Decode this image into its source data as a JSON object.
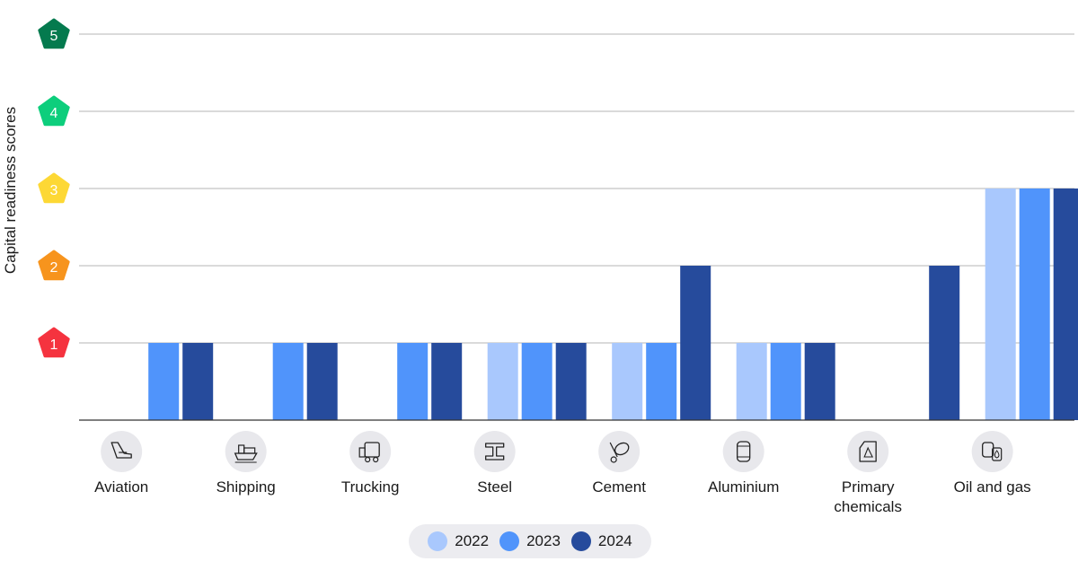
{
  "chart_data": {
    "type": "bar",
    "ylabel": "Capital readiness scores",
    "ylim": [
      0,
      5
    ],
    "yticks": [
      1,
      2,
      3,
      4,
      5
    ],
    "tick_badge_colors": [
      "#f5333f",
      "#f7941d",
      "#fdd835",
      "#0dce7c",
      "#047a4e"
    ],
    "categories": [
      "Aviation",
      "Shipping",
      "Trucking",
      "Steel",
      "Cement",
      "Aluminium",
      "Primary chemicals",
      "Oil and gas"
    ],
    "category_icons": [
      "plane-tail-icon",
      "ship-icon",
      "truck-icon",
      "steel-beam-icon",
      "cement-mixer-icon",
      "aluminium-can-icon",
      "chemical-container-icon",
      "oil-barrel-icon"
    ],
    "series": [
      {
        "name": "2022",
        "color": "#a9c8fd",
        "values": [
          null,
          null,
          null,
          1,
          1,
          1,
          null,
          3
        ]
      },
      {
        "name": "2023",
        "color": "#5094fb",
        "values": [
          1,
          1,
          1,
          1,
          1,
          1,
          null,
          3
        ]
      },
      {
        "name": "2024",
        "color": "#264b9c",
        "values": [
          1,
          1,
          1,
          1,
          2,
          1,
          2,
          3
        ]
      }
    ],
    "legend_position": "bottom-center",
    "grid": true
  }
}
